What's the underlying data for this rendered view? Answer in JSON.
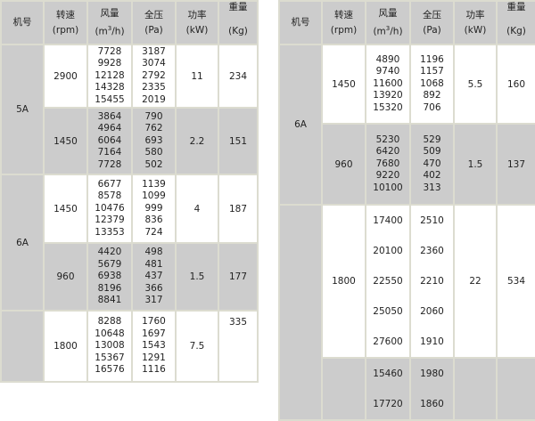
{
  "headers": {
    "model": "机号",
    "speed": "转速",
    "speed_unit": "(rpm)",
    "flow": "风量",
    "flow_unit_pre": "(m",
    "flow_unit_sup": "3",
    "flow_unit_post": "/h)",
    "pressure": "全压",
    "pressure_unit": "(Pa)",
    "power": "功率",
    "power_unit": "(kW)",
    "weight": "重量",
    "weight_unit": "(Kg)"
  },
  "colors": {
    "gray": "#cccccc",
    "border": "#dcdcd0",
    "white": "#ffffff"
  },
  "tables": [
    {
      "groups": [
        {
          "model": "5A",
          "rows": [
            {
              "speed": "2900",
              "flow": [
                "7728",
                "9928",
                "12128",
                "14328",
                "15455"
              ],
              "pressure": [
                "3187",
                "3074",
                "2792",
                "2335",
                "2019"
              ],
              "power": "11",
              "weight": "234",
              "shade": "white"
            },
            {
              "speed": "1450",
              "flow": [
                "3864",
                "4964",
                "6064",
                "7164",
                "7728"
              ],
              "pressure": [
                "790",
                "762",
                "693",
                "580",
                "502"
              ],
              "power": "2.2",
              "weight": "151",
              "shade": "gray"
            }
          ]
        },
        {
          "model": "6A",
          "rows": [
            {
              "speed": "1450",
              "flow": [
                "6677",
                "8578",
                "10476",
                "12379",
                "13353"
              ],
              "pressure": [
                "1139",
                "1099",
                "999",
                "836",
                "724"
              ],
              "power": "4",
              "weight": "187",
              "shade": "white"
            },
            {
              "speed": "960",
              "flow": [
                "4420",
                "5679",
                "6938",
                "8196",
                "8841"
              ],
              "pressure": [
                "498",
                "481",
                "437",
                "366",
                "317"
              ],
              "power": "1.5",
              "weight": "177",
              "shade": "gray"
            }
          ]
        },
        {
          "model": "",
          "rows": [
            {
              "speed": "1800",
              "flow": [
                "8288",
                "10648",
                "13008",
                "15367",
                "16576"
              ],
              "pressure": [
                "1760",
                "1697",
                "1543",
                "1291",
                "1116"
              ],
              "power": "7.5",
              "weight": "335",
              "shade": "white",
              "weight_top": true
            }
          ]
        }
      ]
    },
    {
      "groups": [
        {
          "model": "6A",
          "rows": [
            {
              "speed": "1450",
              "flow": [
                "4890",
                "9740",
                "11600",
                "13920",
                "15320"
              ],
              "pressure": [
                "1196",
                "1157",
                "1068",
                "892",
                "706"
              ],
              "power": "5.5",
              "weight": "160",
              "shade": "white"
            },
            {
              "speed": "960",
              "flow": [
                "5230",
                "6420",
                "7680",
                "9220",
                "10100"
              ],
              "pressure": [
                "529",
                "509",
                "470",
                "402",
                "313"
              ],
              "power": "1.5",
              "weight": "137",
              "shade": "gray"
            }
          ]
        },
        {
          "model": "",
          "rows": [
            {
              "speed": "1800",
              "flow": [
                "17400",
                "20100",
                "22550",
                "25050",
                "27600"
              ],
              "pressure": [
                "2510",
                "2360",
                "2210",
                "2060",
                "1910"
              ],
              "power": "22",
              "weight": "534",
              "shade": "white",
              "spaced": true
            },
            {
              "speed": "",
              "flow": [
                "15460",
                "17720"
              ],
              "pressure": [
                "1980",
                "1860"
              ],
              "power": "",
              "weight": "",
              "shade": "gray",
              "spaced": true,
              "partial": true
            }
          ]
        }
      ]
    }
  ]
}
